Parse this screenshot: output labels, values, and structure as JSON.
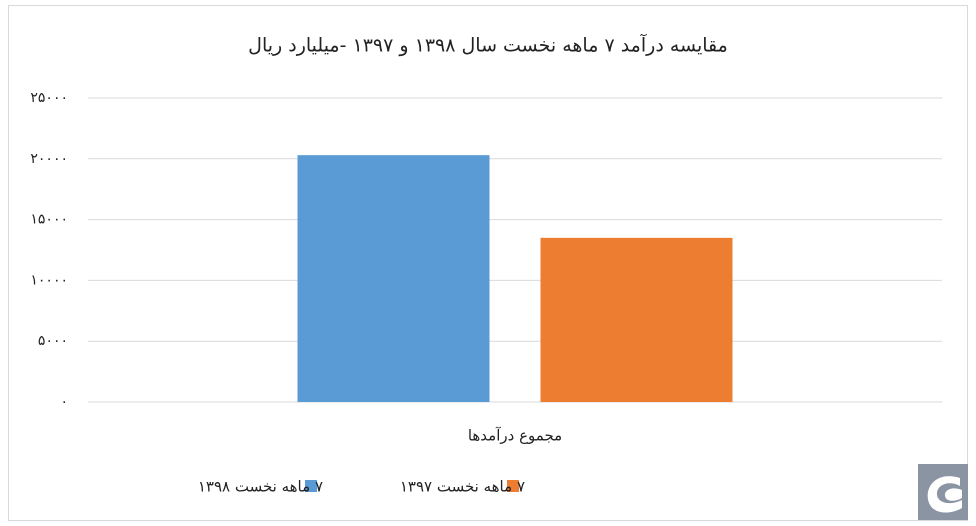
{
  "chart_data": {
    "type": "bar",
    "title": "مقایسه درآمد ۷ ماهه نخست سال ۱۳۹۸ و ۱۳۹۷ -میلیارد ریال",
    "categories": [
      "مجموع درآمدها"
    ],
    "series": [
      {
        "name": "۷ ماهه نخست ۱۳۹۸",
        "color": "#5b9bd5",
        "values": [
          20300
        ]
      },
      {
        "name": "۷ ماهه نخست ۱۳۹۷",
        "color": "#ed7d31",
        "values": [
          13500
        ]
      }
    ],
    "ylim": [
      0,
      25000
    ],
    "yticks": [
      {
        "value": 0,
        "label": "۰"
      },
      {
        "value": 5000,
        "label": "۵۰۰۰"
      },
      {
        "value": 10000,
        "label": "۱۰۰۰۰"
      },
      {
        "value": 15000,
        "label": "۱۵۰۰۰"
      },
      {
        "value": 20000,
        "label": "۲۰۰۰۰"
      },
      {
        "value": 25000,
        "label": "۲۵۰۰۰"
      }
    ],
    "grid": true
  }
}
